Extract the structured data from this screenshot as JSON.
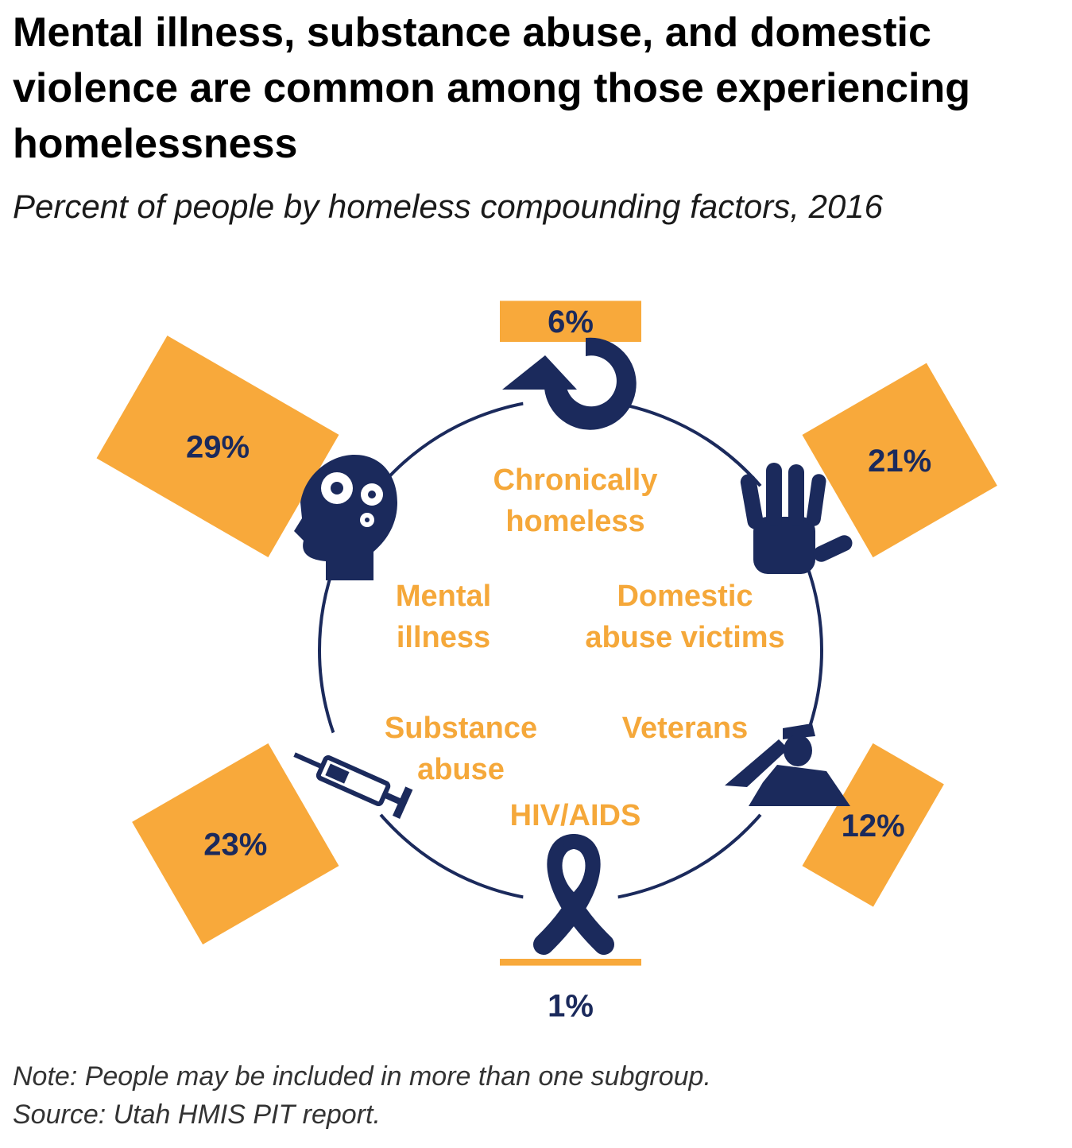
{
  "title": "Mental illness, substance abuse, and domestic violence are common among those experiencing homelessness",
  "subtitle": "Percent of people by homeless compounding factors, 2016",
  "note": "Note: People may be included in more than one subgroup.",
  "source": "Source: Utah HMIS PIT report.",
  "colors": {
    "bar": "#f8a93b",
    "accent": "#f5a83a",
    "navy": "#1b2a5c"
  },
  "chart_data": {
    "type": "bar",
    "categories": [
      "Chronically homeless",
      "Domestic abuse victims",
      "Veterans",
      "HIV/AIDS",
      "Substance abuse",
      "Mental illness"
    ],
    "values": [
      6,
      21,
      12,
      1,
      23,
      29
    ],
    "value_labels": [
      "6%",
      "21%",
      "12%",
      "1%",
      "23%",
      "29%"
    ],
    "category_lines": [
      [
        "Chronically",
        "homeless"
      ],
      [
        "Domestic",
        "abuse victims"
      ],
      [
        "Veterans"
      ],
      [
        "HIV/AIDS"
      ],
      [
        "Substance",
        "abuse"
      ],
      [
        "Mental",
        "illness"
      ]
    ],
    "icons": [
      "cycle-arrow-icon",
      "hand-icon",
      "saluting-soldier-icon",
      "awareness-ribbon-icon",
      "syringe-icon",
      "head-gears-icon"
    ],
    "unit": "%"
  }
}
